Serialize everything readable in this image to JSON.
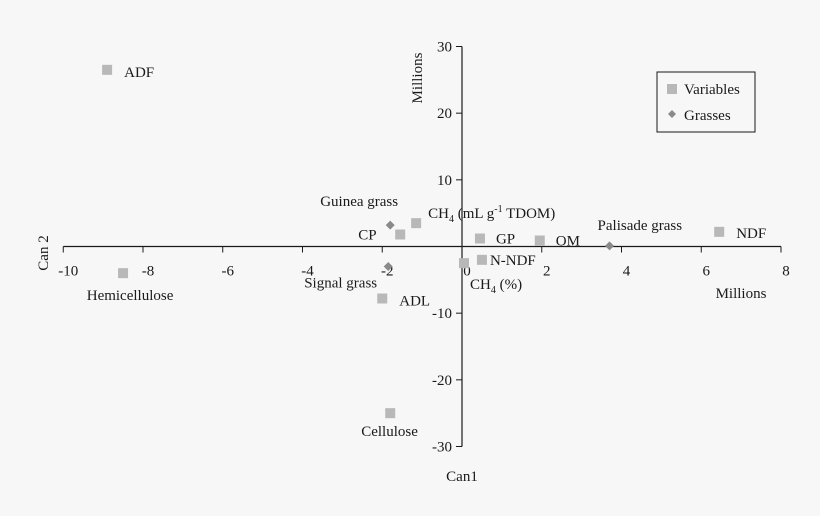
{
  "chart_data": {
    "type": "scatter",
    "x_axis": {
      "title": "Can1",
      "unit_label": "Millions",
      "range": [
        -10,
        8
      ],
      "ticks": [
        -10,
        -8,
        -6,
        -4,
        -2,
        0,
        2,
        4,
        6,
        8
      ],
      "tick_labels": [
        "-10",
        "-8",
        "-6",
        "-4",
        "-2",
        "0",
        "2",
        "4",
        "6",
        "8"
      ]
    },
    "y_axis": {
      "title": "Can 2",
      "unit_label": "Millions",
      "range": [
        -30,
        30
      ],
      "ticks": [
        -30,
        -20,
        -10,
        0,
        10,
        20,
        30
      ],
      "tick_labels": [
        "-30",
        "-20",
        "-10",
        "",
        "10",
        "20",
        "30"
      ]
    },
    "legend": {
      "placement": "top-right",
      "entries": [
        {
          "name": "Variables",
          "marker": "square",
          "color": "#b8b8b8"
        },
        {
          "name": "Grasses",
          "marker": "diamond",
          "color": "#8a8a8a"
        }
      ]
    },
    "series": [
      {
        "name": "Variables",
        "marker": "square",
        "color": "#b8b8b8",
        "points": [
          {
            "label": "ADF",
            "x": -8.9,
            "y": 26.5
          },
          {
            "label": "Hemicellulose",
            "x": -8.5,
            "y": -4.0
          },
          {
            "label": "CH4 (mL g-1 TDOM)",
            "x": -1.15,
            "y": 3.5
          },
          {
            "label": "CP",
            "x": -1.55,
            "y": 1.8
          },
          {
            "label": "GP",
            "x": 0.45,
            "y": 1.2
          },
          {
            "label": "OM",
            "x": 1.95,
            "y": 0.9
          },
          {
            "label": "N-NDF",
            "x": 0.5,
            "y": -2.0
          },
          {
            "label": "CH4 (%)",
            "x": 0.05,
            "y": -2.5
          },
          {
            "label": "ADL",
            "x": -2.0,
            "y": -7.8
          },
          {
            "label": "Cellulose",
            "x": -1.8,
            "y": -25.0
          },
          {
            "label": "NDF",
            "x": 6.45,
            "y": 2.2
          }
        ]
      },
      {
        "name": "Grasses",
        "marker": "diamond",
        "color": "#8a8a8a",
        "points": [
          {
            "label": "Guinea grass",
            "x": -1.8,
            "y": 3.2
          },
          {
            "label": "Signal grass",
            "x": -1.85,
            "y": -3.0
          },
          {
            "label": "Palisade grass",
            "x": 3.7,
            "y": 0.1
          }
        ]
      }
    ]
  }
}
